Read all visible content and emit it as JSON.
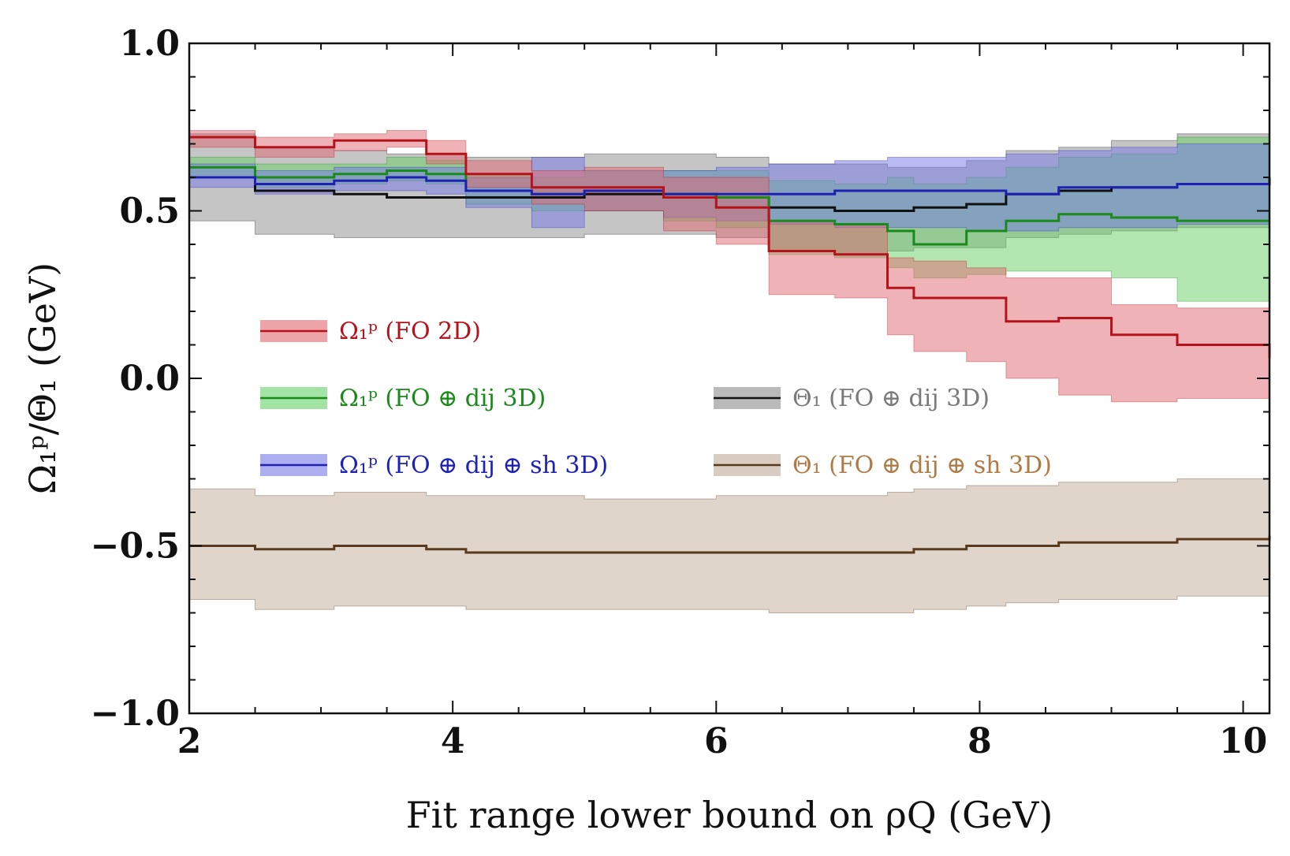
{
  "chart_data": {
    "type": "line",
    "xlabel": "Fit range lower bound on ρQ (GeV)",
    "ylabel": "Ω₁ᵖ/Θ₁ (GeV)",
    "xlim": [
      2,
      10.2
    ],
    "ylim": [
      -1.0,
      1.0
    ],
    "x_ticks": [
      2,
      4,
      6,
      8,
      10
    ],
    "x_tick_labels": [
      "2",
      "4",
      "6",
      "8",
      "10"
    ],
    "y_ticks": [
      -1.0,
      -0.5,
      0.0,
      0.5,
      1.0
    ],
    "y_tick_labels": [
      "−1.0",
      "−0.5",
      "0.0",
      "0.5",
      "1.0"
    ],
    "grid": false,
    "series": [
      {
        "name": "Ω₁ᵖ (FO 2D)",
        "color": "#b5121b",
        "fill": "#e06870",
        "x": [
          2,
          2.5,
          3.1,
          3.5,
          3.8,
          4.1,
          4.6,
          5.0,
          5.6,
          6.0,
          6.4,
          6.9,
          7.3,
          7.5,
          7.9,
          8.2,
          8.6,
          9.0,
          9.5,
          10.2
        ],
        "y": [
          0.72,
          0.69,
          0.71,
          0.71,
          0.67,
          0.61,
          0.57,
          0.57,
          0.54,
          0.51,
          0.38,
          0.37,
          0.27,
          0.24,
          0.24,
          0.17,
          0.18,
          0.13,
          0.1,
          0.06
        ],
        "lower": [
          0.69,
          0.66,
          0.68,
          0.69,
          0.64,
          0.57,
          0.52,
          0.5,
          0.44,
          0.4,
          0.25,
          0.24,
          0.13,
          0.08,
          0.05,
          0.0,
          -0.05,
          -0.07,
          -0.06,
          -0.06
        ],
        "upper": [
          0.74,
          0.72,
          0.73,
          0.74,
          0.71,
          0.65,
          0.62,
          0.63,
          0.6,
          0.6,
          0.47,
          0.46,
          0.36,
          0.35,
          0.33,
          0.3,
          0.3,
          0.22,
          0.21,
          0.18
        ]
      },
      {
        "name": "Ω₁ᵖ (FO ⊕ dij 3D)",
        "color": "#1a8a1a",
        "fill": "#66d066",
        "x": [
          2,
          2.5,
          3.1,
          3.5,
          3.8,
          4.1,
          4.6,
          5.0,
          5.6,
          6.0,
          6.4,
          6.9,
          7.3,
          7.5,
          7.9,
          8.2,
          8.6,
          9.0,
          9.5,
          10.2
        ],
        "y": [
          0.63,
          0.6,
          0.61,
          0.62,
          0.61,
          0.56,
          0.55,
          0.56,
          0.55,
          0.54,
          0.47,
          0.46,
          0.44,
          0.4,
          0.44,
          0.47,
          0.49,
          0.48,
          0.47,
          0.47
        ],
        "lower": [
          0.6,
          0.57,
          0.58,
          0.59,
          0.58,
          0.52,
          0.5,
          0.5,
          0.47,
          0.45,
          0.37,
          0.36,
          0.33,
          0.3,
          0.31,
          0.32,
          0.32,
          0.3,
          0.23,
          0.23
        ],
        "upper": [
          0.66,
          0.64,
          0.64,
          0.66,
          0.65,
          0.61,
          0.6,
          0.62,
          0.62,
          0.62,
          0.59,
          0.58,
          0.6,
          0.58,
          0.6,
          0.63,
          0.66,
          0.67,
          0.72,
          0.81
        ]
      },
      {
        "name": "Ω₁ᵖ (FO ⊕ dij ⊕ sh 3D)",
        "color": "#1e22b4",
        "fill": "#7478e6",
        "x": [
          2,
          2.5,
          3.1,
          3.5,
          3.8,
          4.1,
          4.6,
          5.0,
          5.6,
          6.0,
          6.4,
          6.9,
          7.3,
          7.5,
          7.9,
          8.2,
          8.6,
          9.0,
          9.5,
          10.2
        ],
        "y": [
          0.6,
          0.58,
          0.59,
          0.6,
          0.59,
          0.56,
          0.55,
          0.56,
          0.55,
          0.55,
          0.55,
          0.56,
          0.56,
          0.56,
          0.56,
          0.55,
          0.57,
          0.57,
          0.58,
          0.58
        ],
        "lower": [
          0.57,
          0.55,
          0.56,
          0.56,
          0.55,
          0.51,
          0.45,
          0.5,
          0.48,
          0.47,
          0.46,
          0.45,
          0.45,
          0.45,
          0.44,
          0.44,
          0.45,
          0.45,
          0.46,
          0.47
        ],
        "upper": [
          0.64,
          0.62,
          0.63,
          0.63,
          0.63,
          0.6,
          0.66,
          0.62,
          0.62,
          0.63,
          0.64,
          0.65,
          0.66,
          0.66,
          0.66,
          0.67,
          0.68,
          0.69,
          0.7,
          0.71
        ]
      },
      {
        "name": "Θ₁ (FO ⊕ dij 3D)",
        "color": "#111111",
        "fill": "#8c8c8c",
        "x": [
          2,
          2.5,
          3.1,
          3.5,
          3.8,
          4.1,
          4.6,
          5.0,
          5.6,
          6.0,
          6.4,
          6.9,
          7.3,
          7.5,
          7.9,
          8.2,
          8.6,
          9.0,
          9.5,
          10.2
        ],
        "y": [
          0.6,
          0.56,
          0.55,
          0.54,
          0.54,
          0.54,
          0.54,
          0.55,
          0.55,
          0.54,
          0.51,
          0.5,
          0.5,
          0.51,
          0.52,
          0.55,
          0.56,
          0.57,
          0.58,
          0.6
        ],
        "lower": [
          0.47,
          0.43,
          0.42,
          0.42,
          0.42,
          0.42,
          0.42,
          0.43,
          0.43,
          0.42,
          0.38,
          0.37,
          0.38,
          0.39,
          0.39,
          0.42,
          0.43,
          0.44,
          0.45,
          0.47
        ],
        "upper": [
          0.73,
          0.69,
          0.68,
          0.67,
          0.67,
          0.66,
          0.66,
          0.67,
          0.67,
          0.66,
          0.64,
          0.64,
          0.63,
          0.63,
          0.65,
          0.68,
          0.69,
          0.71,
          0.73,
          0.74
        ]
      },
      {
        "name": "Θ₁ (FO ⊕ dij ⊕ sh 3D)",
        "color": "#5a3a1c",
        "fill": "#bfab98",
        "x": [
          2,
          2.5,
          3.1,
          3.5,
          3.8,
          4.1,
          4.6,
          5.0,
          5.6,
          6.0,
          6.4,
          6.9,
          7.3,
          7.5,
          7.9,
          8.2,
          8.6,
          9.0,
          9.5,
          10.2
        ],
        "y": [
          -0.5,
          -0.51,
          -0.5,
          -0.5,
          -0.51,
          -0.52,
          -0.52,
          -0.52,
          -0.52,
          -0.52,
          -0.52,
          -0.52,
          -0.52,
          -0.51,
          -0.5,
          -0.5,
          -0.49,
          -0.49,
          -0.48,
          -0.47
        ],
        "lower": [
          -0.66,
          -0.69,
          -0.68,
          -0.68,
          -0.68,
          -0.69,
          -0.69,
          -0.69,
          -0.69,
          -0.69,
          -0.7,
          -0.7,
          -0.7,
          -0.69,
          -0.68,
          -0.67,
          -0.66,
          -0.66,
          -0.65,
          -0.64
        ],
        "upper": [
          -0.33,
          -0.35,
          -0.34,
          -0.34,
          -0.35,
          -0.35,
          -0.35,
          -0.36,
          -0.36,
          -0.35,
          -0.35,
          -0.35,
          -0.34,
          -0.33,
          -0.32,
          -0.32,
          -0.31,
          -0.31,
          -0.3,
          -0.29
        ]
      }
    ],
    "legend": [
      {
        "label": "Ω₁ᵖ (FO 2D)",
        "series_index": 0,
        "text_color": "#b5121b"
      },
      {
        "label": "Ω₁ᵖ (FO ⊕ dij 3D)",
        "series_index": 1,
        "text_color": "#1a8a1a"
      },
      {
        "label": "Ω₁ᵖ (FO ⊕ dij ⊕ sh 3D)",
        "series_index": 2,
        "text_color": "#1e22b4"
      },
      {
        "label": "Θ₁ (FO ⊕ dij 3D)",
        "series_index": 3,
        "text_color": "#7a7a7a"
      },
      {
        "label": "Θ₁ (FO ⊕ dij ⊕ sh 3D)",
        "series_index": 4,
        "text_color": "#b07a45"
      }
    ]
  }
}
